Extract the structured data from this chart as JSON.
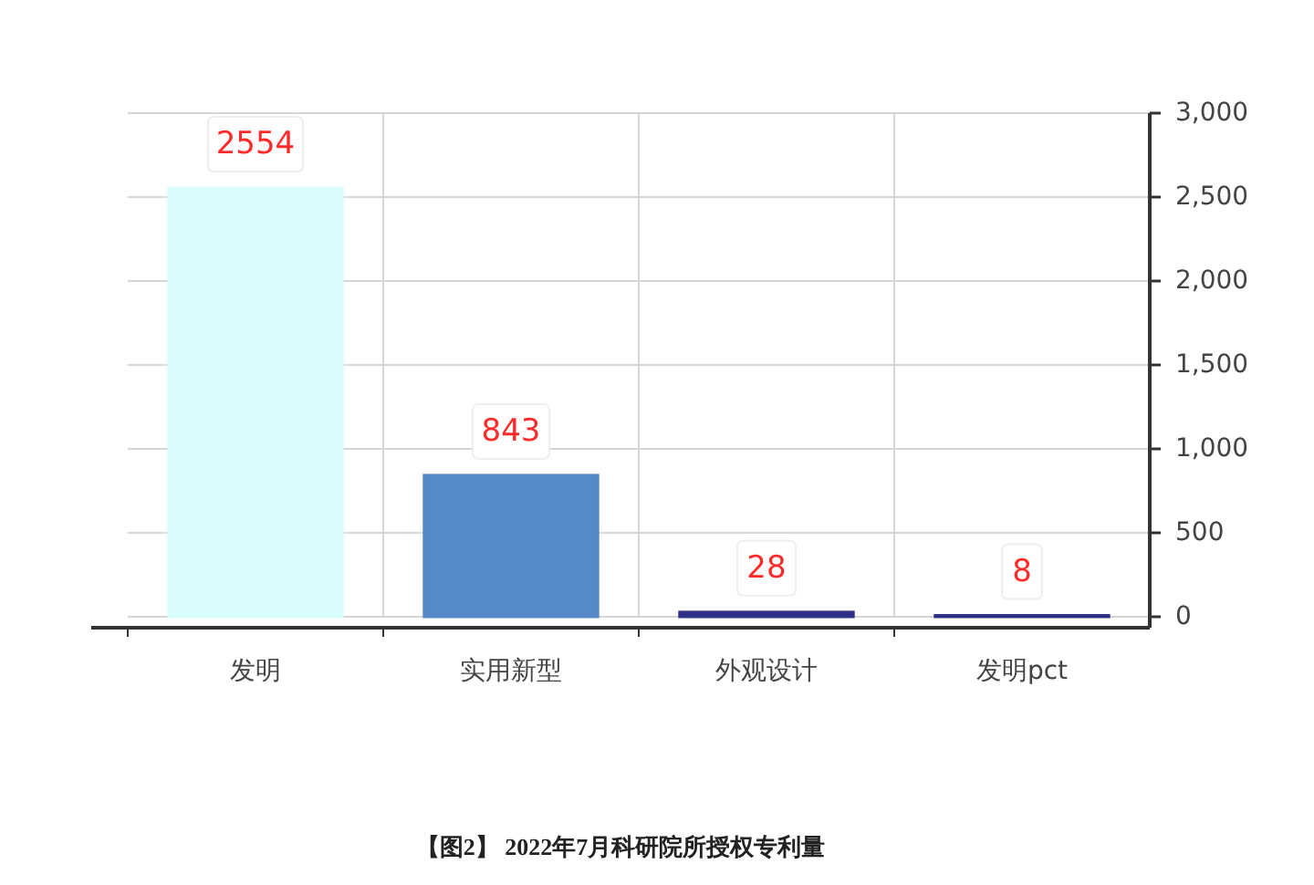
{
  "chart_data": {
    "type": "bar",
    "title": "【图2】 2022年7月科研院所授权专利量",
    "categories": [
      "发明",
      "实用新型",
      "外观设计",
      "发明pct"
    ],
    "values": [
      2554,
      843,
      28,
      8
    ],
    "colors": [
      "#d9fbfd",
      "#5589c8",
      "#2e3186",
      "#2e3186"
    ],
    "ylim": [
      0,
      3000
    ],
    "yticks": [
      0,
      500,
      {
        "value": 1000,
        "label": "1,000"
      },
      {
        "value": 1500,
        "label": "1,500"
      },
      {
        "value": 2000,
        "label": "2,000"
      },
      {
        "value": 2500,
        "label": "2,500"
      },
      {
        "value": 3000,
        "label": "3,000"
      }
    ],
    "grid": true,
    "data_labels": true
  }
}
